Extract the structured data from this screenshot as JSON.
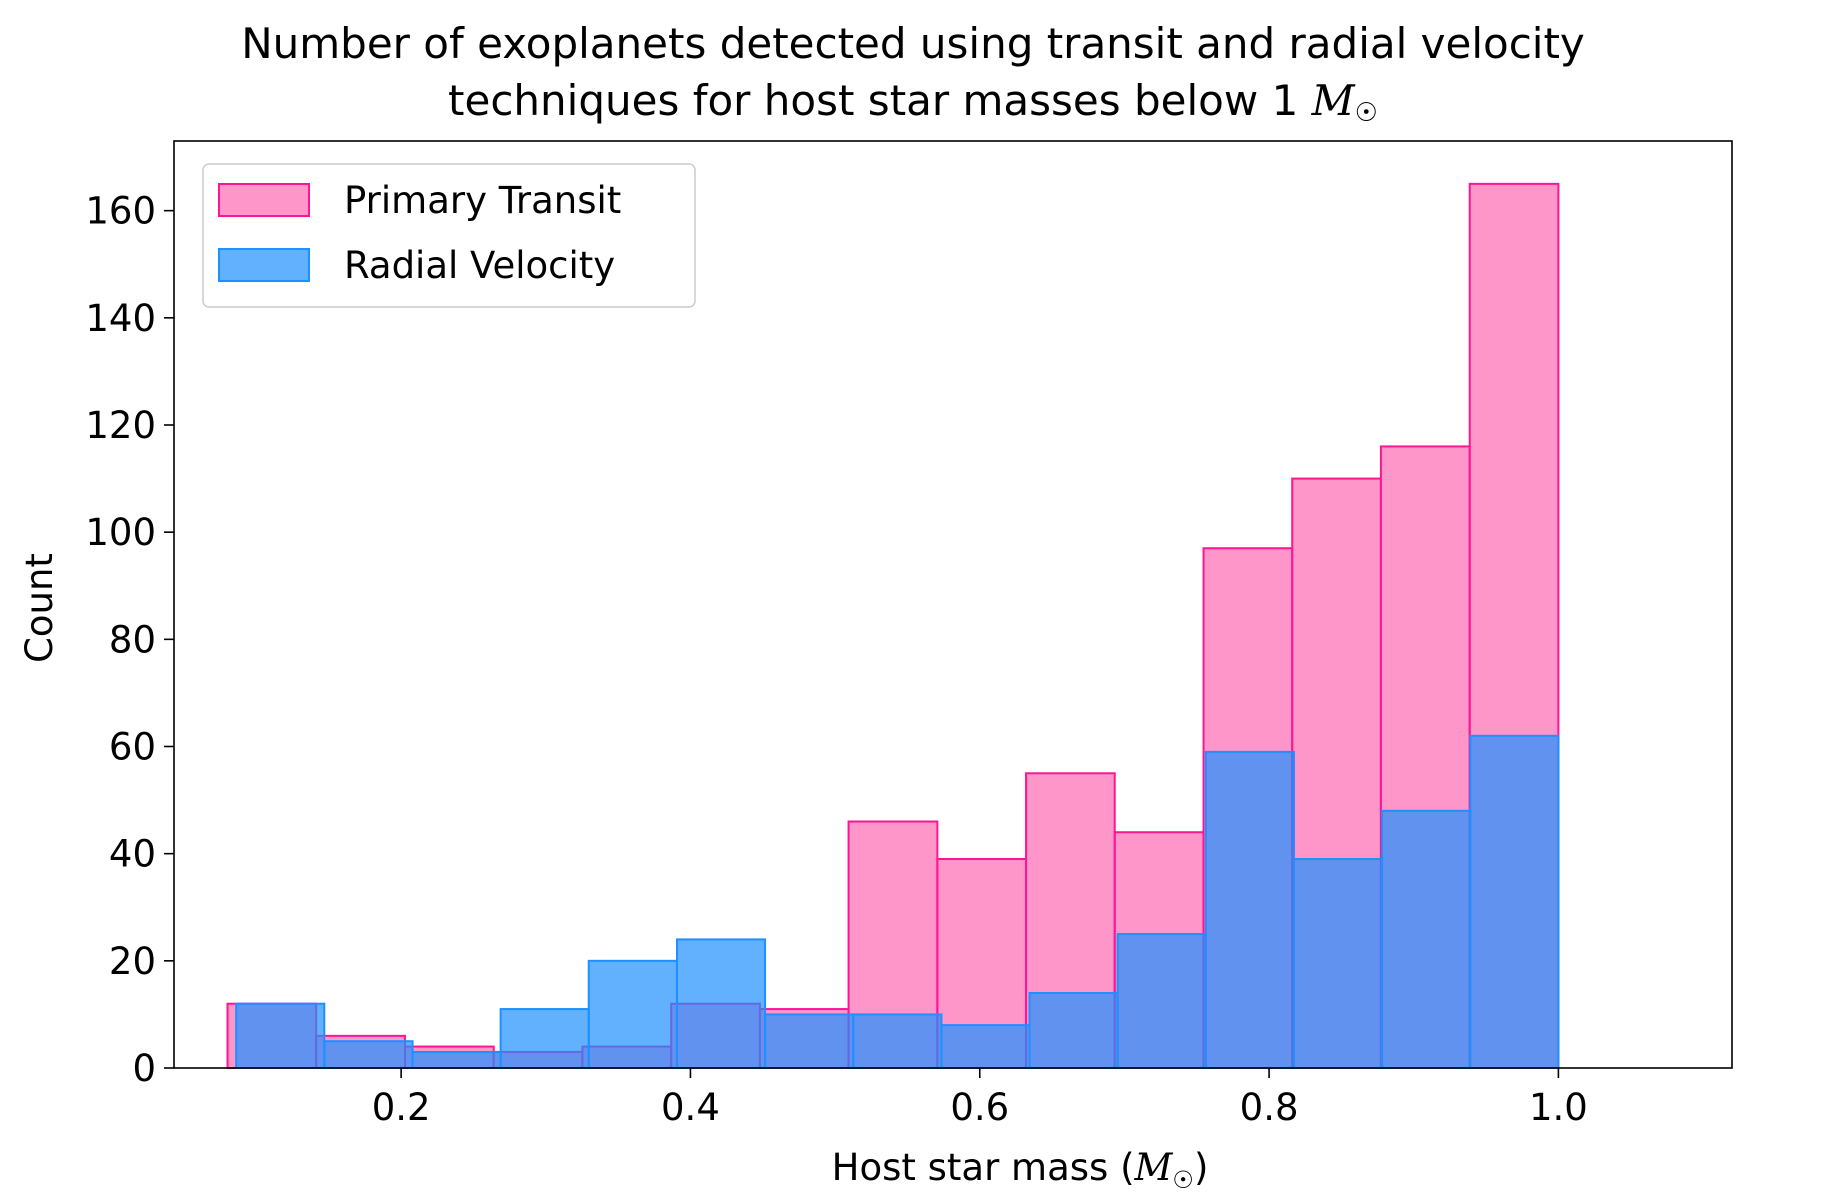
{
  "chart_data": {
    "type": "bar",
    "title_line1": "Number of exoplanets detected using transit and radial velocity",
    "title_line2": "techniques for host star masses below 1 ",
    "title_symbol": "M",
    "sun_symbol": "☉",
    "xlabel": "Host star mass (",
    "xlabel_symbol": "M",
    "xlabel_close": ")",
    "ylabel": "Count",
    "xlim": [
      0.043,
      1.12
    ],
    "ylim": [
      0,
      173
    ],
    "xticks": [
      0.2,
      0.4,
      0.6,
      0.8,
      1.0
    ],
    "xtick_labels": [
      "0.2",
      "0.4",
      "0.6",
      "0.8",
      "1.0"
    ],
    "yticks": [
      0,
      20,
      40,
      60,
      80,
      100,
      120,
      140,
      160
    ],
    "ytick_labels": [
      "0",
      "20",
      "40",
      "60",
      "80",
      "100",
      "120",
      "140",
      "160"
    ],
    "legend_location": "upper-left",
    "series": [
      {
        "name": "Primary Transit",
        "color": "#ff69b4",
        "edge": "#ff1493",
        "bin_edges": [
          0.08,
          0.1413,
          0.2027,
          0.264,
          0.3253,
          0.3867,
          0.448,
          0.5093,
          0.5707,
          0.632,
          0.6933,
          0.7547,
          0.816,
          0.8773,
          0.9387,
          1.0
        ],
        "values": [
          12,
          6,
          4,
          3,
          4,
          12,
          11,
          46,
          39,
          55,
          44,
          97,
          110,
          116,
          165
        ]
      },
      {
        "name": "Radial Velocity",
        "color": "#1e90ff",
        "edge": "#1e90ff",
        "bin_edges": [
          0.086,
          0.1469,
          0.2079,
          0.2688,
          0.3297,
          0.3907,
          0.4516,
          0.5125,
          0.5735,
          0.6344,
          0.6953,
          0.7563,
          0.8172,
          0.8781,
          0.9391,
          1.0
        ],
        "values": [
          12,
          5,
          3,
          11,
          20,
          24,
          10,
          10,
          8,
          14,
          25,
          59,
          39,
          48,
          62
        ]
      }
    ]
  }
}
